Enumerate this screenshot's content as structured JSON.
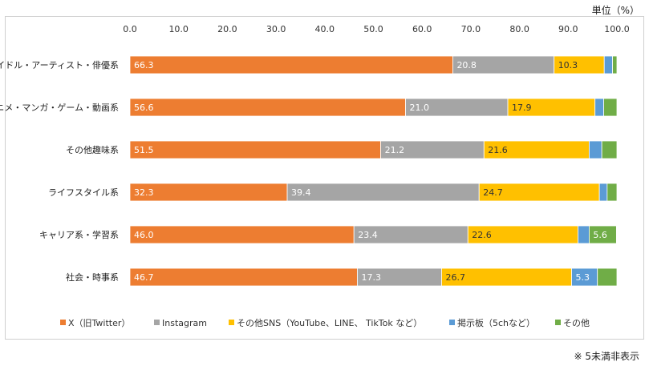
{
  "unit_label": "単位（%）",
  "footnote": "※ 5未満非表示",
  "colors": {
    "X（旧Twitter）": "#ED7D31",
    "Instagram": "#A5A5A5",
    "その他SNS（YouTube、LINE、 TikTok など）": "#FFC000",
    "掲示板（5chなど）": "#5B9BD5",
    "その他": "#70AD47"
  },
  "chart_data": {
    "type": "bar",
    "orientation": "horizontal",
    "stacked": true,
    "xlim": [
      0,
      100
    ],
    "ticks": [
      "0.0",
      "10.0",
      "20.0",
      "30.0",
      "40.0",
      "50.0",
      "60.0",
      "70.0",
      "80.0",
      "90.0",
      "100.0"
    ],
    "legend_position": "bottom",
    "categories": [
      "アイドル・アーティスト・俳優系",
      "アニメ・マンガ・ゲーム・動画系",
      "その他趣味系",
      "ライフスタイル系",
      "キャリア系・学習系",
      "社会・時事系"
    ],
    "series": [
      {
        "name": "X（旧Twitter）",
        "values": [
          66.3,
          56.6,
          51.5,
          32.3,
          46.0,
          46.7
        ],
        "labels": [
          "66.3",
          "56.6",
          "51.5",
          "32.3",
          "46.0",
          "46.7"
        ]
      },
      {
        "name": "Instagram",
        "values": [
          20.8,
          21.0,
          21.2,
          39.4,
          23.4,
          17.3
        ],
        "labels": [
          "20.8",
          "21.0",
          "21.2",
          "39.4",
          "23.4",
          "17.3"
        ]
      },
      {
        "name": "その他SNS（YouTube、LINE、 TikTok など）",
        "values": [
          10.3,
          17.9,
          21.6,
          24.7,
          22.6,
          26.7
        ],
        "labels": [
          "10.3",
          "17.9",
          "21.6",
          "24.7",
          "22.6",
          "26.7"
        ]
      },
      {
        "name": "掲示板（5chなど）",
        "values": [
          1.7,
          1.8,
          2.6,
          1.6,
          2.3,
          5.3
        ],
        "labels": [
          "",
          "",
          "",
          "",
          "",
          "5.3"
        ]
      },
      {
        "name": "その他",
        "values": [
          0.9,
          2.7,
          3.1,
          2.0,
          5.6,
          4.0
        ],
        "labels": [
          "",
          "",
          "",
          "",
          "5.6",
          ""
        ]
      }
    ]
  }
}
